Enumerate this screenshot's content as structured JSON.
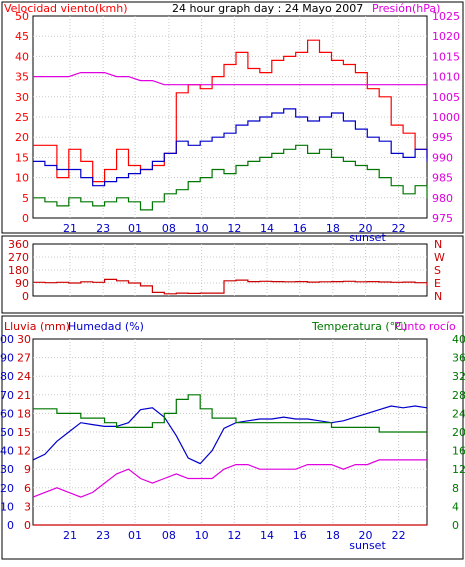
{
  "chart_data": [
    {
      "type": "line",
      "title": "24 hour graph day : 24 Mayo 2007",
      "left_axis_label": "Velocidad viento(kmh)",
      "right_axis_label": "Presión(hPa)",
      "x_tick_labels": [
        "21",
        "23",
        "01",
        "08",
        "10",
        "12",
        "14",
        "16",
        "18",
        "20",
        "22"
      ],
      "x_annotation": "sunset",
      "y_left_ticks": [
        0,
        5,
        10,
        15,
        20,
        25,
        30,
        35,
        40,
        45,
        50
      ],
      "y_right_ticks": [
        975,
        980,
        985,
        990,
        995,
        1000,
        1005,
        1010,
        1015,
        1020,
        1025
      ],
      "ylim_left": [
        0,
        50
      ],
      "ylim_right": [
        975,
        1025
      ],
      "grid": true,
      "colors": {
        "gust": "#ff0000",
        "avg": "#0000cc",
        "low": "#007700",
        "pressure": "#e000e0",
        "title": "#000000"
      },
      "series": [
        {
          "values": [
            18,
            18,
            10,
            17,
            14,
            9,
            12,
            17,
            13,
            12,
            13,
            16,
            31,
            33,
            32,
            35,
            38,
            41,
            37,
            36,
            39,
            40,
            41,
            44,
            41,
            39,
            38,
            36,
            32,
            30,
            23,
            21,
            17,
            15
          ]
        },
        {
          "values": [
            14,
            13,
            12,
            12,
            10,
            8,
            9,
            10,
            11,
            12,
            14,
            16,
            19,
            18,
            19,
            20,
            21,
            23,
            24,
            25,
            26,
            27,
            25,
            24,
            25,
            26,
            24,
            22,
            20,
            19,
            16,
            15,
            17,
            14
          ]
        },
        {
          "values": [
            5,
            4,
            3,
            5,
            4,
            3,
            4,
            5,
            4,
            2,
            4,
            6,
            7,
            9,
            10,
            12,
            11,
            13,
            14,
            15,
            16,
            17,
            18,
            16,
            17,
            15,
            14,
            13,
            12,
            10,
            8,
            6,
            8,
            5
          ]
        },
        {
          "values": [
            1010,
            1010,
            1010,
            1010,
            1011,
            1011,
            1011,
            1010,
            1010,
            1009,
            1009,
            1008,
            1008,
            1008,
            1008,
            1008,
            1008,
            1008,
            1008,
            1008,
            1008,
            1008,
            1008,
            1008,
            1008,
            1008,
            1008,
            1008,
            1008,
            1008,
            1008,
            1008,
            1008,
            1008
          ]
        }
      ]
    },
    {
      "type": "line",
      "y_left_ticks": [
        0,
        90,
        180,
        270,
        360
      ],
      "y_right_ticks": [
        "N",
        "E",
        "S",
        "W",
        "N"
      ],
      "ylim_left": [
        0,
        360
      ],
      "grid": true,
      "colors": {
        "direction": "#cc0000"
      },
      "series": [
        {
          "values": [
            95,
            92,
            95,
            90,
            98,
            95,
            115,
            105,
            90,
            70,
            25,
            15,
            20,
            18,
            20,
            20,
            105,
            110,
            100,
            102,
            100,
            98,
            100,
            96,
            98,
            100,
            102,
            98,
            100,
            97,
            95,
            96,
            92,
            70
          ]
        }
      ]
    },
    {
      "type": "line",
      "left_axis_label_1": "Lluvia (mm)",
      "left_axis_label_2": "Humedad (%)",
      "right_axis_label_1": "Temperatura (°C)",
      "right_axis_label_2": "Punto rocío",
      "y_humidity_ticks": [
        0,
        10,
        20,
        30,
        40,
        50,
        60,
        70,
        80,
        90,
        100
      ],
      "y_rain_ticks": [
        0,
        3,
        6,
        9,
        12,
        15,
        18,
        21,
        24,
        27,
        30
      ],
      "y_temp_ticks": [
        0,
        4,
        8,
        12,
        16,
        20,
        24,
        28,
        32,
        36,
        40
      ],
      "ylim_humidity": [
        0,
        100
      ],
      "ylim_temp": [
        0,
        40
      ],
      "grid": true,
      "colors": {
        "rain": "#cc0000",
        "humidity": "#0000cc",
        "temp": "#007700",
        "dewpoint": "#e000e0"
      },
      "series": [
        {
          "values": [
            0,
            0,
            0,
            0,
            0,
            0,
            0,
            0,
            0,
            0,
            0,
            0,
            0,
            0,
            0,
            0,
            0,
            0,
            0,
            0,
            0,
            0,
            0,
            0,
            0,
            0,
            0,
            0,
            0,
            0,
            0,
            0,
            0,
            0
          ]
        },
        {
          "values": [
            35,
            38,
            45,
            50,
            55,
            54,
            53,
            53,
            55,
            62,
            63,
            58,
            48,
            36,
            33,
            40,
            52,
            55,
            56,
            57,
            57,
            58,
            57,
            57,
            56,
            55,
            56,
            58,
            60,
            62,
            64,
            63,
            64,
            63
          ]
        },
        {
          "values": [
            25,
            25,
            24,
            24,
            23,
            23,
            22,
            21,
            21,
            21,
            22,
            24,
            27,
            28,
            25,
            23,
            23,
            22,
            22,
            22,
            22,
            22,
            22,
            22,
            22,
            21,
            21,
            21,
            21,
            20,
            20,
            20,
            20,
            20
          ]
        },
        {
          "values": [
            6,
            7,
            8,
            7,
            6,
            7,
            9,
            11,
            12,
            10,
            9,
            10,
            11,
            10,
            10,
            10,
            12,
            13,
            13,
            12,
            12,
            12,
            12,
            13,
            13,
            13,
            12,
            13,
            13,
            14,
            14,
            14,
            14,
            14
          ]
        }
      ]
    }
  ]
}
